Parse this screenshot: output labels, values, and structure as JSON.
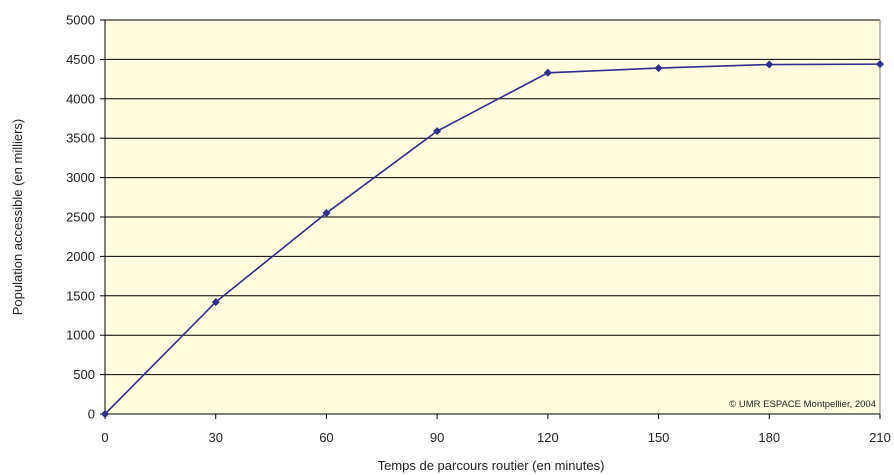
{
  "chart_data": {
    "type": "line",
    "x": [
      0,
      30,
      60,
      90,
      120,
      150,
      180,
      210
    ],
    "series": [
      {
        "values": [
          0,
          1420,
          2550,
          3590,
          4330,
          4390,
          4435,
          4440
        ]
      }
    ],
    "xlabel": "Temps de parcours routier (en minutes)",
    "ylabel": "Population accessible (en milliers)",
    "xticks": [
      "0",
      "30",
      "60",
      "90",
      "120",
      "150",
      "180",
      "210"
    ],
    "yticks": [
      "0",
      "500",
      "1000",
      "1500",
      "2000",
      "2500",
      "3000",
      "3500",
      "4000",
      "4500",
      "5000"
    ],
    "xlim": [
      0,
      210
    ],
    "ylim": [
      0,
      5000
    ],
    "grid": "horizontal",
    "legend": "none",
    "annotation": "© UMR ESPACE Montpellier, 2004",
    "colors": {
      "plot_background": "#FFFCE0",
      "line": "#2E2E8C",
      "marker": "#2E2E8C",
      "grid": "#000000",
      "frame": "#808080"
    }
  }
}
